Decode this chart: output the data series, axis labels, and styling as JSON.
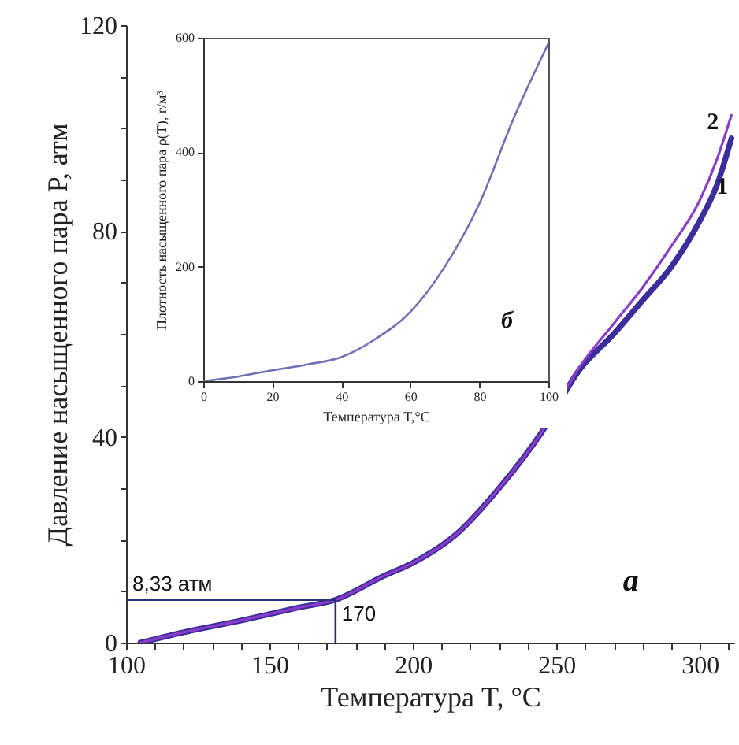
{
  "chart_data": [
    {
      "type": "line",
      "xlabel": "Температура T, °C",
      "ylabel": "Давление насыщенного пара P, атм",
      "xlim": [
        100,
        312
      ],
      "ylim": [
        0,
        120
      ],
      "xticks": [
        100,
        {
          "value": 110,
          "label": null
        },
        {
          "value": 120,
          "label": null
        },
        {
          "value": 130,
          "label": null
        },
        {
          "value": 140,
          "label": null
        },
        150,
        {
          "value": 160,
          "label": null
        },
        {
          "value": 170,
          "label": null
        },
        {
          "value": 180,
          "label": null
        },
        {
          "value": 190,
          "label": null
        },
        200,
        {
          "value": 210,
          "label": null
        },
        {
          "value": 220,
          "label": null
        },
        {
          "value": 230,
          "label": null
        },
        {
          "value": 240,
          "label": null
        },
        250,
        {
          "value": 260,
          "label": null
        },
        {
          "value": 270,
          "label": null
        },
        {
          "value": 280,
          "label": null
        },
        {
          "value": 290,
          "label": null
        },
        300,
        {
          "value": 310,
          "label": null
        }
      ],
      "yticks": [
        0,
        {
          "value": 10,
          "label": null
        },
        {
          "value": 20,
          "label": null
        },
        {
          "value": 30,
          "label": null
        },
        40,
        {
          "value": 50,
          "label": null
        },
        {
          "value": 60,
          "label": null
        },
        {
          "value": 70,
          "label": null
        },
        80,
        {
          "value": 90,
          "label": null
        },
        {
          "value": 100,
          "label": null
        },
        {
          "value": 110,
          "label": null
        },
        120
      ],
      "series": [
        {
          "name": "1",
          "color": "#3b2d9c",
          "x": [
            105,
            120,
            140,
            160,
            173,
            190,
            200,
            215,
            230,
            245,
            258,
            270,
            280,
            290,
            300,
            306,
            311
          ],
          "values": [
            0,
            2,
            4.3,
            6.8,
            8.33,
            13,
            15.5,
            21,
            30,
            41,
            53,
            60,
            66.5,
            73,
            82,
            89,
            98
          ]
        },
        {
          "name": "2",
          "color": "#8b3cc9",
          "x": [
            105,
            120,
            140,
            160,
            173,
            190,
            200,
            215,
            230,
            245,
            258,
            270,
            280,
            290,
            300,
            306,
            311
          ],
          "values": [
            0,
            2,
            4.3,
            6.8,
            8.33,
            13,
            15.5,
            21,
            30,
            41,
            53.5,
            62,
            69,
            77,
            86,
            94,
            102.5
          ]
        },
        {
          "type": "line",
          "color": "#25307a",
          "x": [
            100,
            173,
            173
          ],
          "values": [
            8.33,
            8.33,
            0
          ]
        }
      ],
      "annotations": [
        {
          "text": "8,33 атм",
          "x": 100,
          "y": 8.33
        },
        {
          "text": "170",
          "x": 173,
          "y": 8.33
        },
        "а"
      ]
    },
    {
      "type": "line",
      "xlabel": "Температура T,°C",
      "ylabel": "Плотность насыщенного пара ρ(T), г/м³",
      "xlim": [
        0,
        100
      ],
      "ylim": [
        0,
        600
      ],
      "xticks": [
        0,
        20,
        40,
        60,
        80,
        100
      ],
      "yticks": [
        0,
        200,
        400,
        600
      ],
      "series": [
        {
          "color": "#6f6fb4",
          "x": [
            0,
            10,
            20,
            30,
            40,
            50,
            60,
            70,
            80,
            90,
            100
          ],
          "values": [
            0,
            8,
            19,
            29,
            42,
            74,
            121,
            200,
            310,
            460,
            590
          ]
        }
      ],
      "annotations": [
        "б"
      ]
    }
  ]
}
